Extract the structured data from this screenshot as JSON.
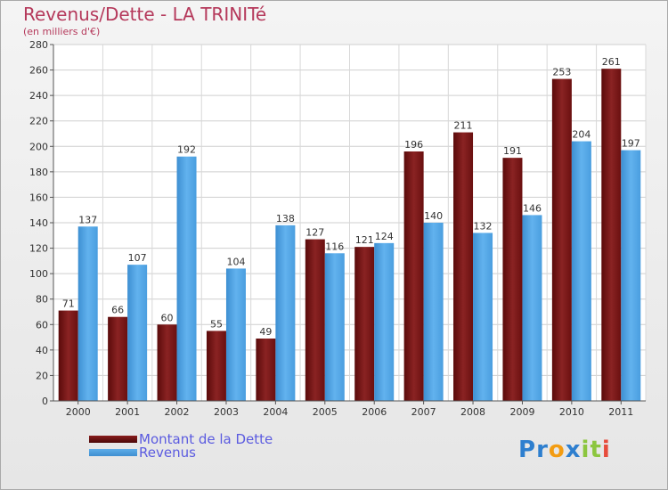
{
  "title": "Revenus/Dette - LA TRINITé",
  "subtitle": "(en milliers d'€)",
  "colors": {
    "dette": "#6e1212",
    "revenus": "#4aa0e2",
    "title": "#b5395b",
    "legend_text": "#5b5be0"
  },
  "logo": {
    "text": "Proxiti",
    "letters": [
      "P",
      "r",
      "o",
      "x",
      "i",
      "t",
      "i"
    ],
    "colors": [
      "#2e7fcf",
      "#2e7fcf",
      "#f39c12",
      "#2e7fcf",
      "#8cc63f",
      "#8cc63f",
      "#e74c3c"
    ]
  },
  "chart_data": {
    "type": "bar",
    "categories": [
      "2000",
      "2001",
      "2002",
      "2003",
      "2004",
      "2005",
      "2006",
      "2007",
      "2008",
      "2009",
      "2010",
      "2011"
    ],
    "series": [
      {
        "name": "Montant de la Dette",
        "values": [
          71,
          66,
          60,
          55,
          49,
          127,
          121,
          196,
          211,
          191,
          253,
          261
        ]
      },
      {
        "name": "Revenus",
        "values": [
          137,
          107,
          192,
          104,
          138,
          116,
          124,
          140,
          132,
          146,
          204,
          197
        ]
      }
    ],
    "ylim": [
      0,
      280
    ],
    "yticks": [
      0,
      20,
      40,
      60,
      80,
      100,
      120,
      140,
      160,
      180,
      200,
      220,
      240,
      260,
      280
    ],
    "grid": true,
    "legend": "bottom-left"
  }
}
